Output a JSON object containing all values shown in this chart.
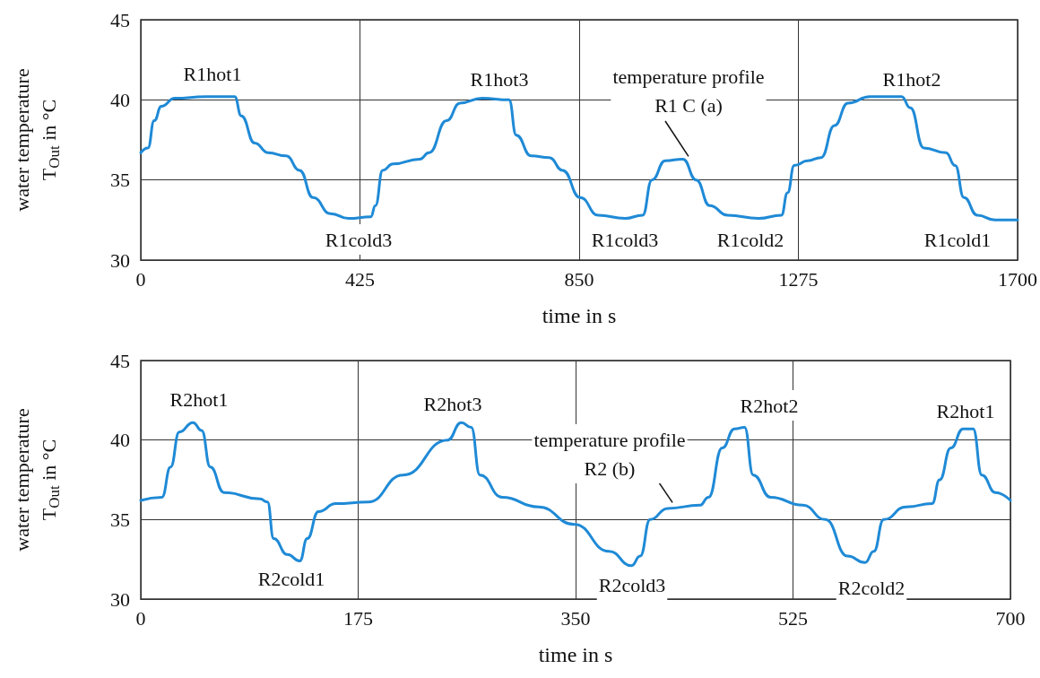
{
  "chart_data": [
    {
      "type": "line",
      "xlabel": "time in s",
      "ylabel": "water temperature\nT$_{Out}$ in °C",
      "xlim": [
        0,
        1700
      ],
      "xticks": [
        0,
        425,
        850,
        1275,
        1700
      ],
      "ylim": [
        30,
        45
      ],
      "yticks": [
        30,
        35,
        40,
        45
      ],
      "grid": true,
      "marker": "none",
      "line_style": "solid",
      "x": [
        0,
        14,
        26,
        40,
        66,
        126,
        182,
        195,
        221,
        247,
        282,
        308,
        334,
        368,
        403,
        446,
        455,
        469,
        489,
        541,
        559,
        593,
        619,
        662,
        714,
        728,
        757,
        792,
        818,
        852,
        887,
        939,
        973,
        991,
        1017,
        1051,
        1077,
        1103,
        1138,
        1198,
        1242,
        1254,
        1267,
        1293,
        1319,
        1345,
        1371,
        1414,
        1475,
        1492,
        1518,
        1561,
        1579,
        1596,
        1622,
        1656,
        1700
      ],
      "series": [
        {
          "color": "#1f8ad6",
          "values": [
            36.7,
            37.0,
            38.7,
            39.6,
            40.1,
            40.2,
            40.2,
            39.0,
            37.3,
            36.7,
            36.5,
            35.6,
            33.9,
            32.9,
            32.6,
            32.7,
            33.4,
            35.6,
            36.0,
            36.3,
            36.7,
            38.7,
            39.8,
            40.1,
            40.0,
            37.8,
            36.5,
            36.4,
            35.6,
            33.9,
            32.8,
            32.6,
            32.8,
            35.0,
            36.2,
            36.3,
            35.0,
            33.4,
            32.8,
            32.6,
            32.8,
            34.2,
            35.9,
            36.2,
            36.4,
            38.4,
            39.8,
            40.2,
            40.2,
            39.5,
            37.0,
            36.7,
            35.9,
            33.9,
            32.8,
            32.5,
            32.5
          ]
        }
      ],
      "annotations": [
        "R1hot1",
        "R1hot3",
        {
          "text": "temperature profile\nR1 C (a)",
          "x": 1062,
          "y": 36.3
        },
        "R1hot2",
        "R1cold3",
        "R1cold3",
        "R1cold2",
        "R1cold1"
      ]
    },
    {
      "type": "line",
      "xlabel": "time in s",
      "ylabel": "water temperature\nT$_{Out}$ in °C",
      "xlim": [
        0,
        700
      ],
      "xticks": [
        0,
        175,
        350,
        525,
        700
      ],
      "ylim": [
        30,
        45
      ],
      "yticks": [
        30,
        35,
        40,
        45
      ],
      "grid": true,
      "marker": "none",
      "line_style": "solid",
      "x": [
        0,
        17,
        24,
        31,
        42,
        49,
        56,
        67,
        96,
        102,
        107,
        118,
        128,
        134,
        143,
        157,
        183,
        211,
        247,
        258,
        266,
        273,
        291,
        320,
        349,
        377,
        395,
        402,
        410,
        424,
        450,
        457,
        468,
        478,
        486,
        493,
        507,
        533,
        551,
        569,
        583,
        590,
        598,
        616,
        637,
        643,
        652,
        662,
        670,
        677,
        688,
        700
      ],
      "series": [
        {
          "color": "#1f8ad6",
          "values": [
            36.2,
            36.4,
            38.3,
            40.5,
            41.1,
            40.6,
            38.3,
            36.7,
            36.3,
            36.1,
            33.8,
            32.8,
            32.4,
            33.8,
            35.5,
            36.0,
            36.1,
            37.8,
            40.0,
            41.1,
            40.8,
            37.8,
            36.4,
            35.8,
            34.7,
            33.0,
            32.1,
            32.7,
            35.0,
            35.7,
            35.9,
            36.4,
            39.5,
            40.7,
            40.8,
            37.8,
            36.4,
            35.9,
            35.0,
            32.7,
            32.3,
            33.0,
            35.0,
            35.8,
            36.0,
            37.5,
            39.5,
            40.7,
            40.7,
            37.8,
            36.7,
            36.2
          ]
        }
      ],
      "annotations": [
        "R2hot1",
        "R2hot3",
        {
          "text": "temperature profile\nR2 (b)",
          "x": 428,
          "y": 35.9
        },
        "R2hot2",
        "R2hot1",
        "R2cold1",
        "R2cold3",
        "R2cold2"
      ]
    }
  ]
}
